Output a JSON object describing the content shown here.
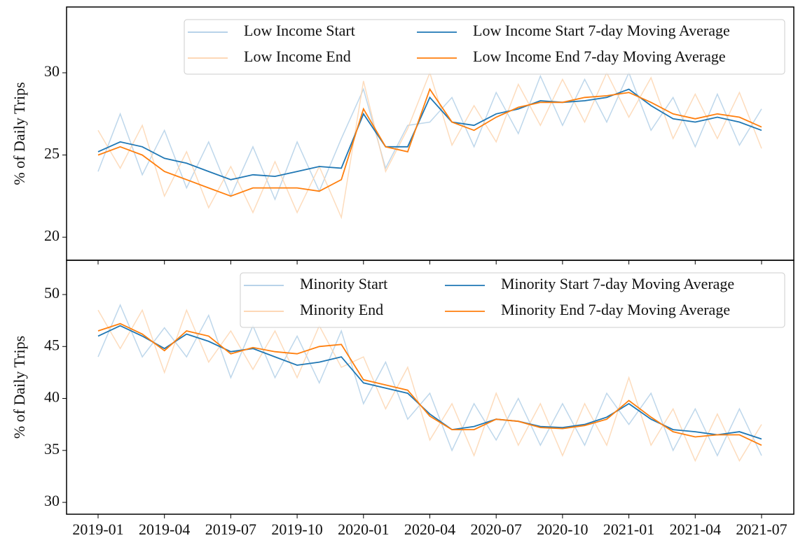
{
  "chart_data": [
    {
      "type": "line",
      "ylabel": "% of Daily Trips",
      "ylim": [
        18.6,
        34
      ],
      "yticks": [
        20,
        25,
        30
      ],
      "x": [
        "2019-01",
        "2019-02",
        "2019-03",
        "2019-04",
        "2019-05",
        "2019-06",
        "2019-07",
        "2019-08",
        "2019-09",
        "2019-10",
        "2019-11",
        "2019-12",
        "2020-01",
        "2020-02",
        "2020-03",
        "2020-04",
        "2020-05",
        "2020-06",
        "2020-07",
        "2020-08",
        "2020-09",
        "2020-10",
        "2020-11",
        "2020-12",
        "2021-01",
        "2021-02",
        "2021-03",
        "2021-04",
        "2021-05",
        "2021-06",
        "2021-07"
      ],
      "series": [
        {
          "name": "Low Income Start",
          "color": "#aecde6",
          "values": [
            24.0,
            27.5,
            23.8,
            26.5,
            23.0,
            25.8,
            22.5,
            25.5,
            22.3,
            25.8,
            22.8,
            26.0,
            29.0,
            24.2,
            26.8,
            27.0,
            28.5,
            25.5,
            28.8,
            26.3,
            29.8,
            26.8,
            29.6,
            27.0,
            30.0,
            26.5,
            28.5,
            25.5,
            28.7,
            25.6,
            27.8
          ]
        },
        {
          "name": "Low Income End",
          "color": "#fdd3ad",
          "values": [
            26.5,
            24.2,
            26.8,
            22.5,
            25.2,
            21.8,
            24.3,
            21.5,
            24.6,
            21.5,
            24.3,
            21.2,
            29.5,
            24.0,
            26.6,
            30.0,
            25.6,
            28.0,
            25.8,
            29.3,
            26.8,
            29.6,
            27.0,
            30.0,
            27.3,
            29.7,
            26.0,
            28.7,
            26.0,
            28.8,
            25.4
          ]
        },
        {
          "name": "Low Income Start 7-day Moving Average",
          "color": "#1f77b4",
          "values": [
            25.2,
            25.8,
            25.5,
            24.8,
            24.5,
            24.0,
            23.5,
            23.8,
            23.7,
            24.0,
            24.3,
            24.2,
            27.5,
            25.5,
            25.5,
            28.5,
            27.0,
            26.8,
            27.5,
            27.8,
            28.3,
            28.2,
            28.3,
            28.5,
            29.0,
            28.0,
            27.2,
            27.0,
            27.3,
            27.0,
            26.5
          ]
        },
        {
          "name": "Low Income End 7-day Moving Average",
          "color": "#ff7f0e",
          "values": [
            25.0,
            25.5,
            25.0,
            24.0,
            23.5,
            23.0,
            22.5,
            23.0,
            23.0,
            23.0,
            22.8,
            23.5,
            27.8,
            25.5,
            25.2,
            29.0,
            27.0,
            26.5,
            27.3,
            27.9,
            28.2,
            28.2,
            28.5,
            28.6,
            28.8,
            28.2,
            27.5,
            27.2,
            27.5,
            27.3,
            26.7
          ]
        }
      ]
    },
    {
      "type": "line",
      "ylabel": "% of Daily Trips",
      "ylim": [
        28.86,
        53.3
      ],
      "yticks": [
        30,
        35,
        40,
        45,
        50
      ],
      "x": [
        "2019-01",
        "2019-02",
        "2019-03",
        "2019-04",
        "2019-05",
        "2019-06",
        "2019-07",
        "2019-08",
        "2019-09",
        "2019-10",
        "2019-11",
        "2019-12",
        "2020-01",
        "2020-02",
        "2020-03",
        "2020-04",
        "2020-05",
        "2020-06",
        "2020-07",
        "2020-08",
        "2020-09",
        "2020-10",
        "2020-11",
        "2020-12",
        "2021-01",
        "2021-02",
        "2021-03",
        "2021-04",
        "2021-05",
        "2021-06",
        "2021-07"
      ],
      "series": [
        {
          "name": "Minority Start",
          "color": "#aecde6",
          "values": [
            44,
            49,
            44,
            46.8,
            44,
            48,
            42,
            47,
            42,
            46,
            41.5,
            46.5,
            39.5,
            43.5,
            38,
            40.5,
            35,
            39.5,
            36,
            40,
            35.5,
            39.5,
            35.5,
            40.5,
            37.5,
            40.5,
            35,
            39,
            34.5,
            39,
            34.5
          ]
        },
        {
          "name": "Minority End",
          "color": "#fdd3ad",
          "values": [
            48.5,
            44.8,
            48.5,
            42.5,
            48.5,
            43.5,
            46.5,
            42.8,
            46.5,
            42,
            47,
            43,
            44,
            39,
            43,
            36,
            39.5,
            34.5,
            40.5,
            35.5,
            39.5,
            34.5,
            39.5,
            35.5,
            42,
            35.5,
            39,
            34,
            38.5,
            34,
            37.5
          ]
        },
        {
          "name": "Minority Start 7-day Moving Average",
          "color": "#1f77b4",
          "values": [
            46,
            47,
            46,
            44.8,
            46.2,
            45.5,
            44.5,
            44.8,
            44.0,
            43.2,
            43.5,
            44.0,
            41.5,
            41.0,
            40.5,
            38.5,
            37.0,
            37.3,
            38.0,
            37.8,
            37.3,
            37.2,
            37.5,
            38.2,
            39.5,
            38.0,
            37.0,
            36.8,
            36.5,
            36.8,
            36.1
          ]
        },
        {
          "name": "Minority End 7-day Moving Average",
          "color": "#ff7f0e",
          "values": [
            46.5,
            47.2,
            46.2,
            44.6,
            46.5,
            46.0,
            44.3,
            44.9,
            44.5,
            44.3,
            45.0,
            45.2,
            41.8,
            41.3,
            40.8,
            38.3,
            37.0,
            37.0,
            38.0,
            37.8,
            37.2,
            37.1,
            37.4,
            38.0,
            39.8,
            38.2,
            36.8,
            36.3,
            36.5,
            36.5,
            35.5
          ]
        }
      ]
    }
  ]
}
